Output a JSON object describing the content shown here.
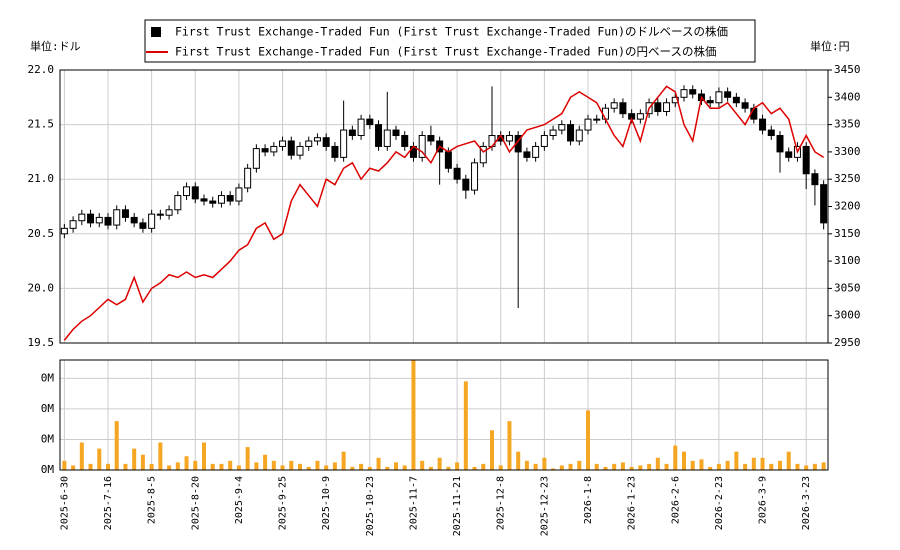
{
  "chart_data": {
    "type": "candlestick",
    "ylabel": "単位:ドル",
    "y2label": "単位:円",
    "grid": true,
    "ylim": [
      19.5,
      22.0
    ],
    "yticks": [
      19.5,
      {
        "value": 20,
        "label": "20.0"
      },
      20.5,
      {
        "value": 21,
        "label": "21.0"
      },
      21.5,
      {
        "value": 22,
        "label": "22.0"
      }
    ],
    "y2lim": [
      2950,
      3450
    ],
    "y2ticks": [
      2950,
      3000,
      3050,
      3100,
      3150,
      3200,
      3250,
      3300,
      3350,
      3400,
      3450
    ],
    "categories": [
      "2025-6-30",
      null,
      null,
      null,
      null,
      "2025-7-16",
      null,
      null,
      null,
      null,
      "2025-8-5",
      null,
      null,
      null,
      null,
      "2025-8-20",
      null,
      null,
      null,
      null,
      "2025-9-4",
      null,
      null,
      null,
      null,
      "2025-9-25",
      null,
      null,
      null,
      null,
      "2025-10-9",
      null,
      null,
      null,
      null,
      "2025-10-23",
      null,
      null,
      null,
      null,
      "2025-11-7",
      null,
      null,
      null,
      null,
      "2025-11-21",
      null,
      null,
      null,
      null,
      "2025-12-8",
      null,
      null,
      null,
      null,
      "2025-12-23",
      null,
      null,
      null,
      null,
      "2026-1-8",
      null,
      null,
      null,
      null,
      "2026-1-23",
      null,
      null,
      null,
      null,
      "2026-2-6",
      null,
      null,
      null,
      null,
      "2026-2-23",
      null,
      null,
      null,
      null,
      "2026-3-9",
      null,
      null,
      null,
      null,
      "2026-3-23",
      null,
      null
    ],
    "series": [
      {
        "name": "First Trust Exchange-Traded Fun (First Trust Exchange-Traded Fun)のドルベースの株価",
        "color": "#000000",
        "type": "candlestick",
        "open": [
          20.5,
          20.55,
          20.62,
          20.68,
          20.6,
          20.65,
          20.58,
          20.72,
          20.65,
          20.6,
          20.55,
          20.68,
          20.67,
          20.72,
          20.85,
          20.93,
          20.82,
          20.8,
          20.78,
          20.85,
          20.8,
          20.92,
          21.1,
          21.28,
          21.25,
          21.3,
          21.35,
          21.22,
          21.3,
          21.35,
          21.38,
          21.3,
          21.2,
          21.45,
          21.4,
          21.55,
          21.5,
          21.3,
          21.45,
          21.4,
          21.3,
          21.2,
          21.4,
          21.35,
          21.25,
          21.1,
          21.0,
          20.9,
          21.15,
          21.3,
          21.4,
          21.35,
          21.4,
          21.25,
          21.2,
          21.3,
          21.4,
          21.45,
          21.5,
          21.35,
          21.45,
          21.55,
          21.55,
          21.65,
          21.7,
          21.6,
          21.55,
          21.6,
          21.7,
          21.62,
          21.7,
          21.75,
          21.82,
          21.78,
          21.72,
          21.7,
          21.8,
          21.75,
          21.7,
          21.65,
          21.55,
          21.45,
          21.4,
          21.25,
          21.2,
          21.3,
          21.05,
          20.95
        ],
        "high": [
          20.59,
          20.66,
          20.72,
          20.72,
          20.69,
          20.69,
          20.76,
          20.76,
          20.69,
          20.64,
          20.72,
          20.72,
          20.76,
          20.89,
          20.97,
          20.97,
          20.86,
          20.84,
          20.89,
          20.89,
          20.96,
          21.14,
          21.32,
          21.32,
          21.34,
          21.39,
          21.39,
          21.34,
          21.39,
          21.42,
          21.42,
          21.34,
          21.72,
          21.49,
          21.59,
          21.59,
          21.54,
          21.8,
          21.49,
          21.44,
          21.34,
          21.44,
          21.49,
          21.39,
          21.29,
          21.14,
          21.04,
          21.19,
          21.34,
          21.85,
          21.44,
          21.44,
          21.44,
          21.29,
          21.34,
          21.44,
          21.49,
          21.54,
          21.54,
          21.49,
          21.59,
          21.59,
          21.69,
          21.74,
          21.74,
          21.64,
          21.64,
          21.74,
          21.74,
          21.74,
          21.79,
          21.86,
          21.86,
          21.82,
          21.76,
          21.84,
          21.84,
          21.79,
          21.74,
          21.69,
          21.59,
          21.49,
          21.44,
          21.29,
          21.34,
          21.34,
          21.09,
          20.99
        ],
        "low": [
          20.46,
          20.51,
          20.58,
          20.56,
          20.56,
          20.54,
          20.54,
          20.61,
          20.56,
          20.51,
          20.51,
          20.63,
          20.63,
          20.68,
          20.81,
          20.78,
          20.76,
          20.74,
          20.74,
          20.76,
          20.76,
          20.88,
          21.06,
          21.21,
          21.21,
          21.26,
          21.18,
          21.18,
          21.26,
          21.31,
          21.26,
          21.16,
          21.16,
          21.36,
          21.36,
          21.46,
          21.26,
          21.26,
          21.36,
          21.26,
          21.16,
          21.16,
          21.31,
          20.95,
          21.06,
          20.96,
          20.82,
          20.86,
          21.11,
          21.26,
          21.31,
          21.31,
          19.82,
          21.16,
          21.16,
          21.26,
          21.36,
          21.41,
          21.31,
          21.31,
          21.41,
          21.51,
          21.51,
          21.61,
          21.56,
          21.51,
          21.51,
          21.56,
          21.58,
          21.58,
          21.66,
          21.71,
          21.74,
          21.68,
          21.66,
          21.66,
          21.71,
          21.66,
          21.61,
          21.51,
          21.41,
          21.36,
          21.06,
          21.16,
          21.16,
          20.91,
          20.76,
          20.54
        ],
        "close": [
          20.55,
          20.62,
          20.68,
          20.6,
          20.65,
          20.58,
          20.72,
          20.65,
          20.6,
          20.55,
          20.68,
          20.67,
          20.72,
          20.85,
          20.93,
          20.82,
          20.8,
          20.78,
          20.85,
          20.8,
          20.92,
          21.1,
          21.28,
          21.25,
          21.3,
          21.35,
          21.22,
          21.3,
          21.35,
          21.38,
          21.3,
          21.2,
          21.45,
          21.4,
          21.55,
          21.5,
          21.3,
          21.45,
          21.4,
          21.3,
          21.2,
          21.4,
          21.35,
          21.25,
          21.1,
          21.0,
          20.9,
          21.15,
          21.3,
          21.4,
          21.35,
          21.4,
          21.25,
          21.2,
          21.3,
          21.4,
          21.45,
          21.5,
          21.35,
          21.45,
          21.55,
          21.55,
          21.65,
          21.7,
          21.6,
          21.55,
          21.6,
          21.7,
          21.62,
          21.7,
          21.75,
          21.82,
          21.78,
          21.72,
          21.7,
          21.8,
          21.75,
          21.7,
          21.65,
          21.55,
          21.45,
          21.4,
          21.25,
          21.2,
          21.3,
          21.05,
          20.95,
          20.6
        ]
      },
      {
        "name": "First Trust Exchange-Traded Fun (First Trust Exchange-Traded Fun)の円ベースの株価",
        "color": "#dd0000",
        "type": "line",
        "axis": "y2",
        "values": [
          2955,
          2975,
          2990,
          3000,
          3015,
          3030,
          3020,
          3030,
          3070,
          3025,
          3050,
          3060,
          3075,
          3070,
          3080,
          3070,
          3075,
          3070,
          3085,
          3100,
          3120,
          3130,
          3160,
          3170,
          3140,
          3150,
          3210,
          3240,
          3220,
          3200,
          3250,
          3240,
          3270,
          3280,
          3250,
          3270,
          3265,
          3280,
          3300,
          3290,
          3310,
          3300,
          3280,
          3310,
          3300,
          3310,
          3315,
          3320,
          3300,
          3310,
          3330,
          3300,
          3320,
          3340,
          3345,
          3350,
          3360,
          3370,
          3400,
          3410,
          3400,
          3390,
          3360,
          3330,
          3310,
          3360,
          3320,
          3380,
          3400,
          3420,
          3410,
          3350,
          3320,
          3400,
          3380,
          3380,
          3390,
          3370,
          3350,
          3380,
          3390,
          3370,
          3380,
          3360,
          3300,
          3330,
          3300,
          3290
        ]
      }
    ],
    "volume": {
      "type": "bar",
      "color": "#f5a623",
      "ylim": [
        0,
        360000
      ],
      "yticks": [
        {
          "value": 0,
          "label": "0M"
        },
        {
          "value": 100000,
          "label": "0M"
        },
        {
          "value": 200000,
          "label": "0M"
        },
        {
          "value": 300000,
          "label": "0M"
        }
      ],
      "values": [
        30000,
        15000,
        90000,
        20000,
        70000,
        20000,
        160000,
        20000,
        70000,
        50000,
        20000,
        90000,
        15000,
        25000,
        45000,
        30000,
        90000,
        20000,
        20000,
        30000,
        15000,
        75000,
        25000,
        50000,
        30000,
        15000,
        30000,
        20000,
        10000,
        30000,
        15000,
        25000,
        60000,
        10000,
        20000,
        10000,
        40000,
        10000,
        25000,
        15000,
        360000,
        30000,
        10000,
        40000,
        10000,
        25000,
        290000,
        10000,
        20000,
        130000,
        15000,
        160000,
        60000,
        30000,
        20000,
        40000,
        5000,
        15000,
        20000,
        30000,
        195000,
        20000,
        10000,
        20000,
        25000,
        10000,
        15000,
        20000,
        40000,
        20000,
        80000,
        60000,
        30000,
        35000,
        10000,
        20000,
        30000,
        60000,
        20000,
        40000,
        40000,
        20000,
        30000,
        60000,
        20000,
        15000,
        20000,
        25000
      ]
    }
  }
}
